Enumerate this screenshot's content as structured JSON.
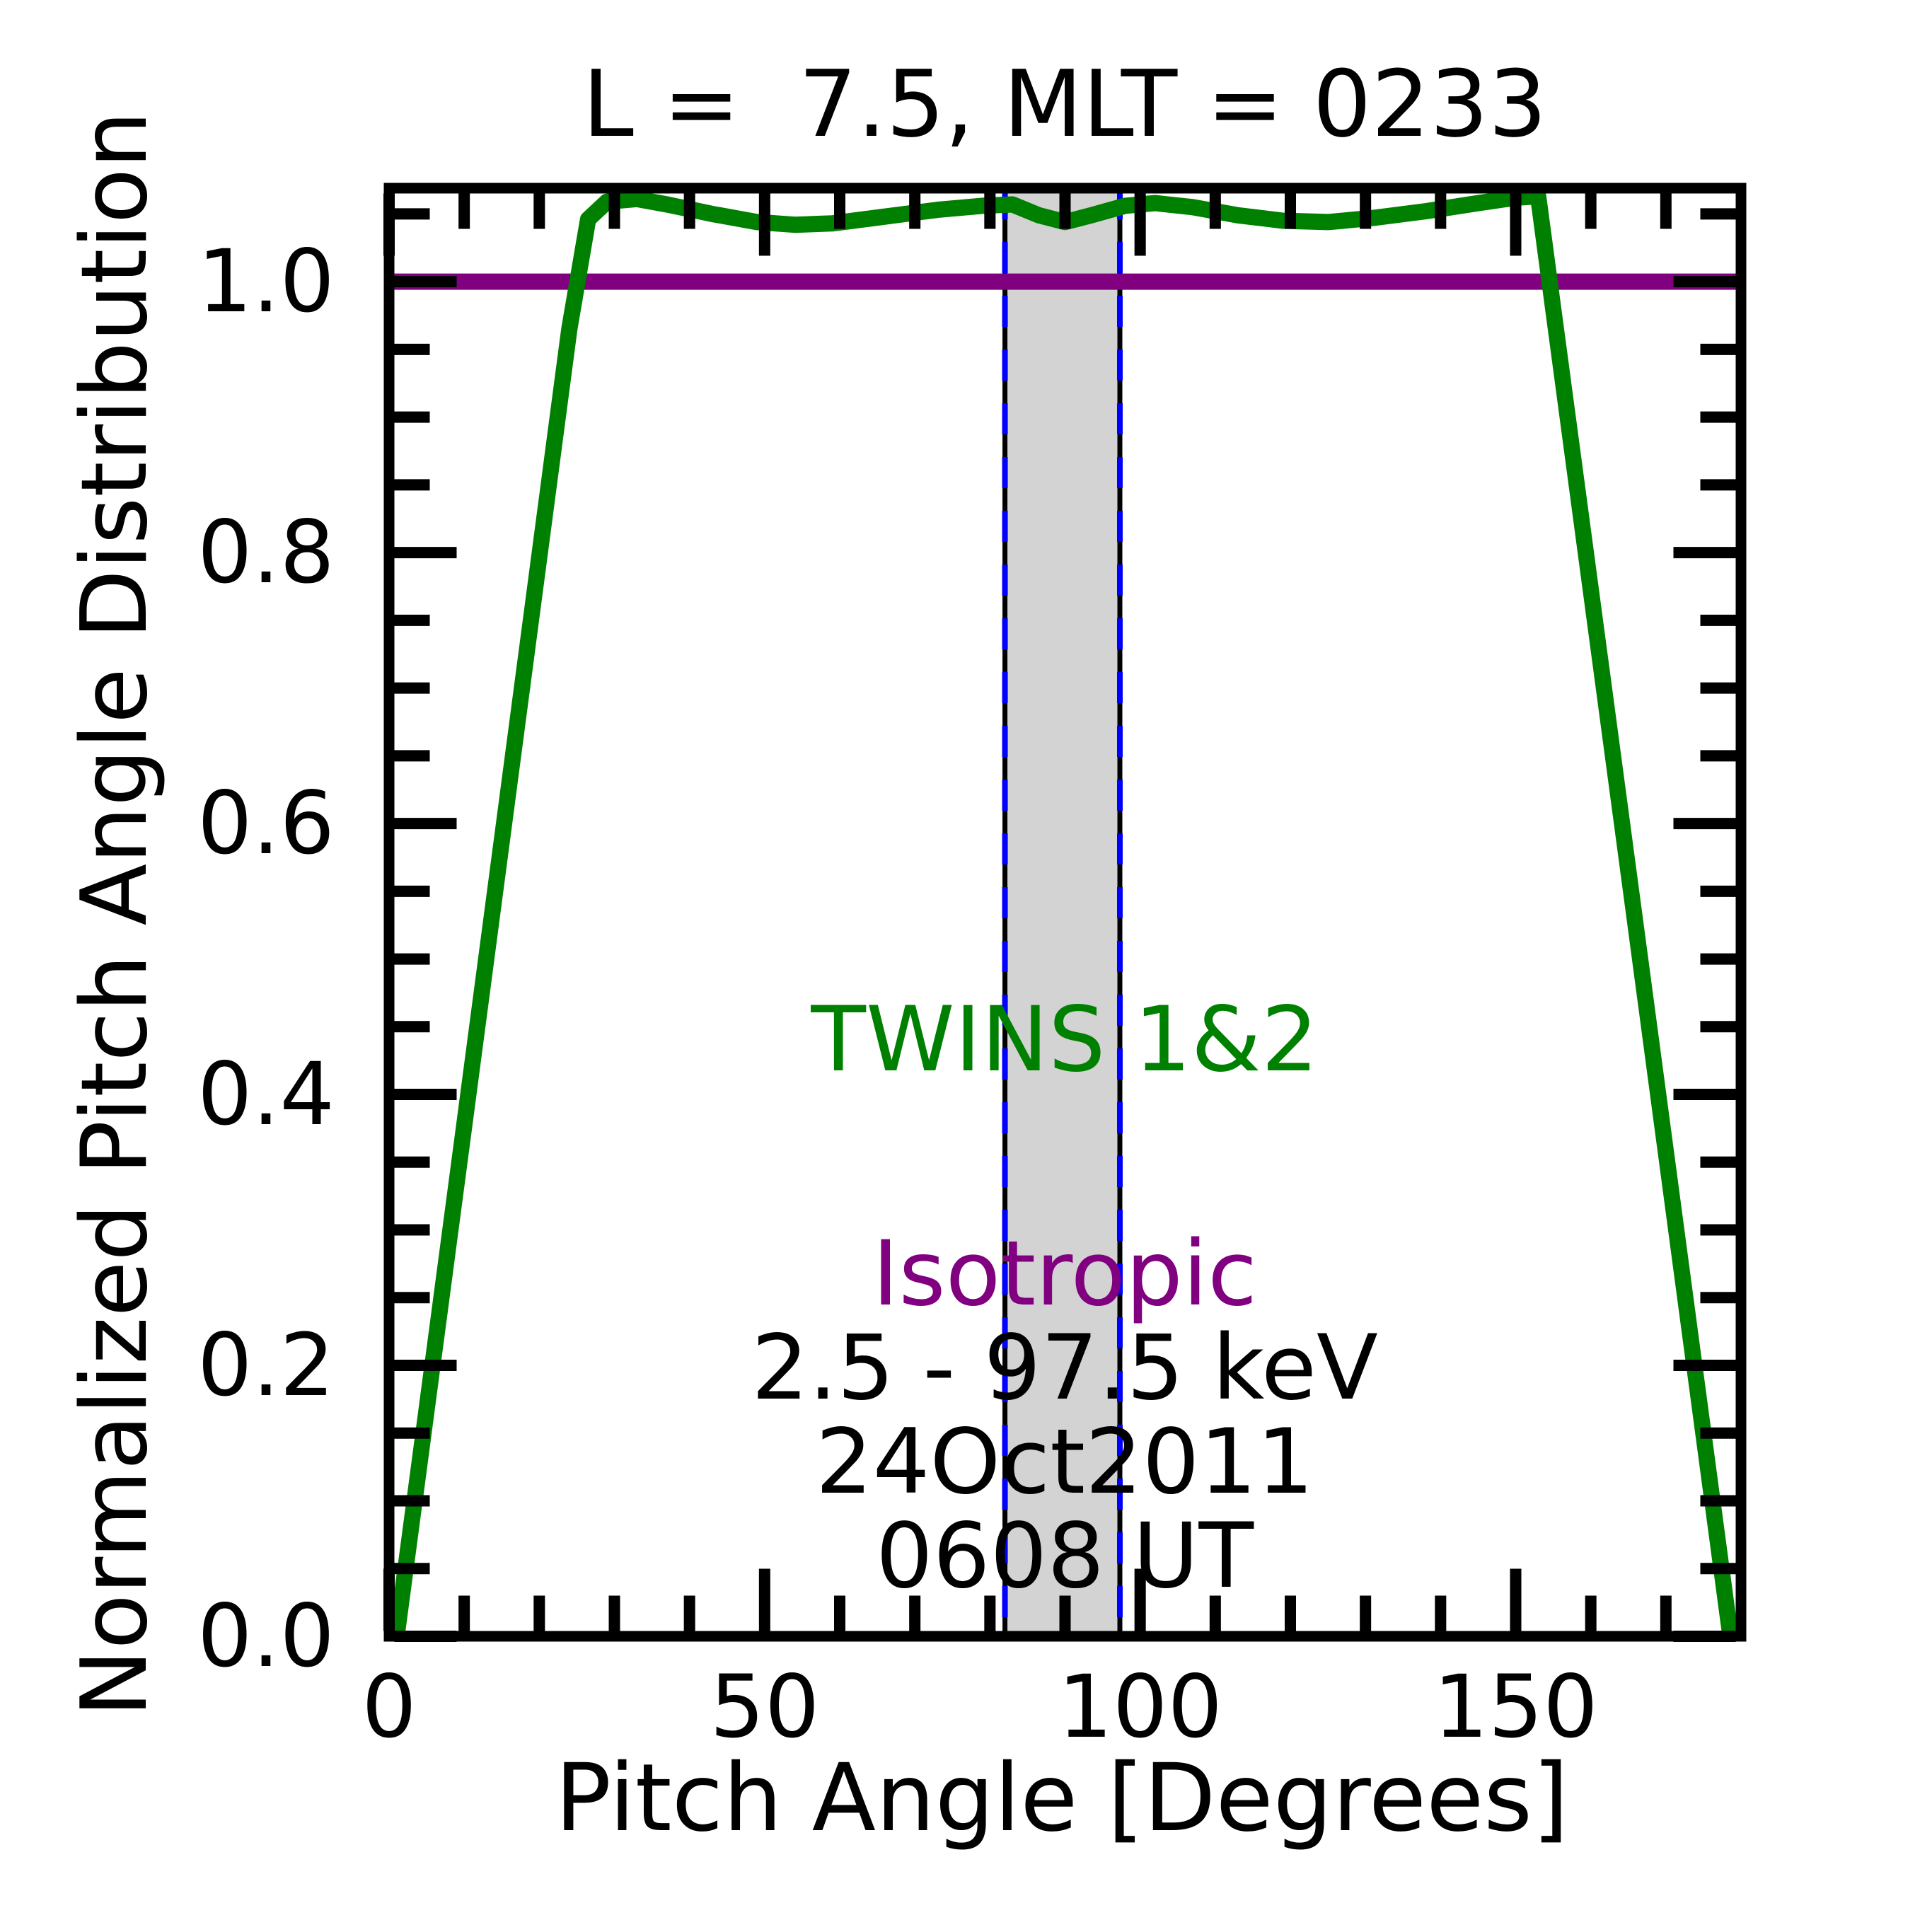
{
  "chart_data": {
    "type": "line",
    "title": "L =  7.5, MLT = 0233",
    "xlabel": "Pitch Angle [Degrees]",
    "ylabel": "Normalized Pitch Angle Distribution",
    "xlim": [
      0,
      180
    ],
    "ylim": [
      0,
      1.069
    ],
    "grid": false,
    "x_major_ticks": [
      0,
      50,
      100,
      150
    ],
    "x_tick_labels": [
      "0",
      "50",
      "100",
      "150"
    ],
    "x_minor_tick_step": 10,
    "y_major_ticks": [
      0,
      0.2,
      0.4,
      0.6,
      0.8,
      1.0
    ],
    "y_tick_labels": [
      "0.0",
      "0.2",
      "0.4",
      "0.6",
      "0.8",
      "1.0"
    ],
    "y_minor_tick_step": 0.05,
    "series": [
      {
        "name": "TWINS 1&2",
        "color": "#008000",
        "points": [
          [
            1.0,
            0.0
          ],
          [
            10,
            0.377
          ],
          [
            18,
            0.713
          ],
          [
            24,
            0.965
          ],
          [
            26.5,
            1.046
          ],
          [
            29,
            1.059
          ],
          [
            33,
            1.061
          ],
          [
            37,
            1.057
          ],
          [
            43,
            1.05
          ],
          [
            49,
            1.044
          ],
          [
            54,
            1.042
          ],
          [
            59,
            1.043
          ],
          [
            66,
            1.048
          ],
          [
            73,
            1.053
          ],
          [
            79,
            1.056
          ],
          [
            83,
            1.057
          ],
          [
            86.5,
            1.049
          ],
          [
            90,
            1.044
          ],
          [
            93.5,
            1.049
          ],
          [
            98,
            1.056
          ],
          [
            102,
            1.058
          ],
          [
            107,
            1.055
          ],
          [
            113,
            1.049
          ],
          [
            119,
            1.045
          ],
          [
            125,
            1.044
          ],
          [
            131,
            1.047
          ],
          [
            138,
            1.052
          ],
          [
            145,
            1.058
          ],
          [
            150,
            1.062
          ],
          [
            153,
            1.063
          ],
          [
            157,
            0.897
          ],
          [
            165,
            0.565
          ],
          [
            172,
            0.274
          ],
          [
            178.6,
            0.0
          ]
        ]
      },
      {
        "name": "Isotropic",
        "color": "#800080",
        "points": [
          [
            0,
            1.0
          ],
          [
            180,
            1.0
          ]
        ]
      }
    ],
    "shaded_band": {
      "x_start": 82,
      "x_end": 97.3,
      "fill": "#D3D3D3",
      "edge_color": "#0000FF",
      "edge_style": "dashed"
    },
    "annotations": [
      {
        "text": "TWINS 1&2",
        "color": "#008000"
      },
      {
        "text": "Isotropic",
        "color": "#800080"
      },
      {
        "text": "2.5 - 97.5 keV",
        "color": "#000000"
      },
      {
        "text": "24Oct2011",
        "color": "#000000"
      },
      {
        "text": "0608 UT",
        "color": "#000000"
      }
    ],
    "axis_color": "#000000"
  }
}
